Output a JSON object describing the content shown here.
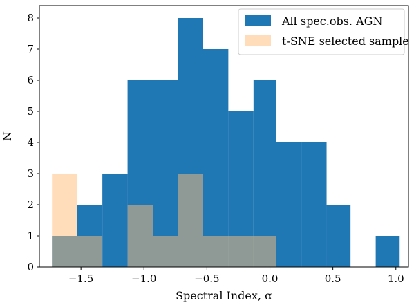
{
  "chart_data": {
    "type": "bar",
    "subtype": "histogram",
    "xlabel": "Spectral Index, α",
    "ylabel": "N",
    "xlim": [
      -1.83,
      1.1
    ],
    "ylim": [
      0,
      8.4
    ],
    "x_ticks": [
      -1.5,
      -1.0,
      -0.5,
      0.0,
      0.5,
      1.0
    ],
    "x_tick_labels": [
      "−1.5",
      "−1.0",
      "−0.5",
      "0.0",
      "0.5",
      "1.0"
    ],
    "y_ticks": [
      0,
      1,
      2,
      3,
      4,
      5,
      6,
      7,
      8
    ],
    "y_tick_labels": [
      "0",
      "1",
      "2",
      "3",
      "4",
      "5",
      "6",
      "7",
      "8"
    ],
    "bin_edges": [
      -1.73,
      -1.53,
      -1.33,
      -1.13,
      -0.93,
      -0.73,
      -0.53,
      -0.33,
      -0.13,
      0.05,
      0.25,
      0.45,
      0.64,
      0.84,
      1.03
    ],
    "series": [
      {
        "name": "All spec.obs. AGN",
        "color": "#1f77b4",
        "values": [
          1,
          2,
          3,
          6,
          6,
          8,
          7,
          5,
          6,
          4,
          4,
          2,
          0,
          1
        ]
      },
      {
        "name": "t-SNE selected sample",
        "color": "#ffbb78",
        "opacity": 0.5,
        "values": [
          3,
          1,
          0,
          2,
          1,
          3,
          1,
          1,
          1,
          0,
          0,
          0,
          0,
          0
        ]
      }
    ],
    "legend_position": "top-right",
    "grid": false
  }
}
